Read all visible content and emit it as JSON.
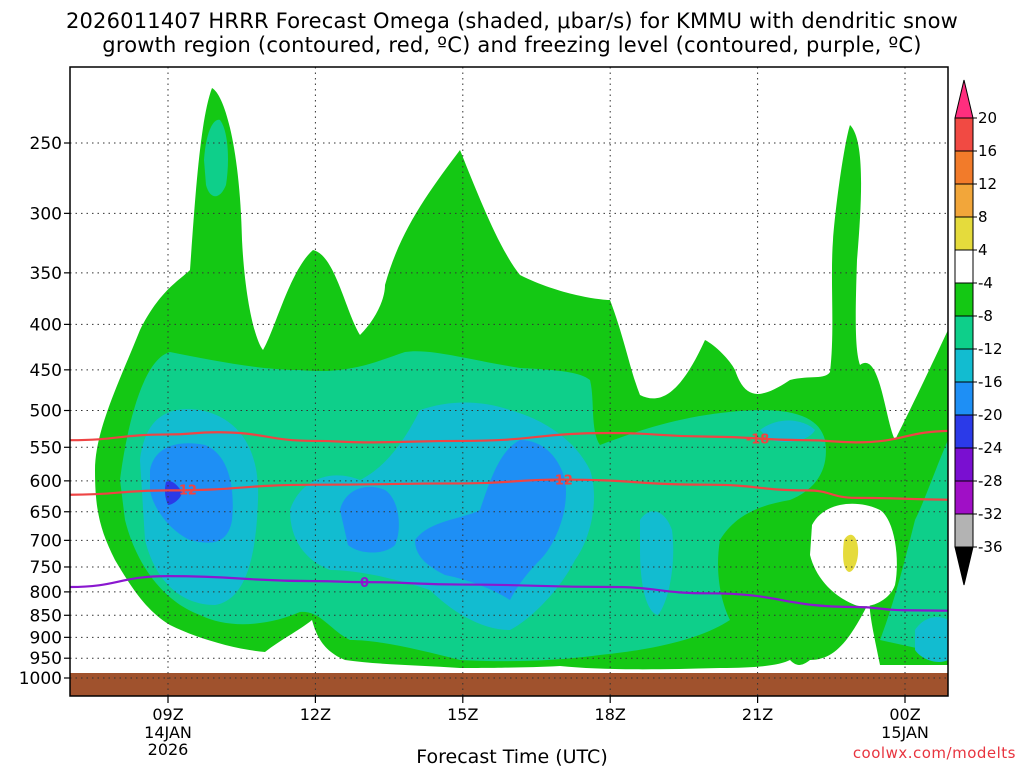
{
  "title_line1": "2026011407 HRRR Forecast Omega (shaded, μbar/s) for KMMU with dendritic snow",
  "title_line2": "growth region (contoured, red, ºC) and freezing level (contoured, purple, ºC)",
  "credit": "coolwx.com/modelts",
  "chart_data": {
    "type": "contour",
    "title": "2026011407 HRRR Forecast Omega (shaded, μbar/s) for KMMU with dendritic snow growth region (contoured, red, ºC) and freezing level (contoured, purple, ºC)",
    "xlabel": "Forecast Time (UTC)",
    "ylabel": "",
    "y_axis": {
      "scale": "pressure (log)",
      "ticks": [
        250,
        300,
        350,
        400,
        450,
        500,
        550,
        600,
        650,
        700,
        750,
        800,
        850,
        900,
        950,
        1000
      ],
      "reversed": true
    },
    "x_axis": {
      "range_hours": [
        7,
        25
      ],
      "ticks": [
        {
          "hour": 9,
          "label": "09Z",
          "sub1": "14JAN",
          "sub2": "2026"
        },
        {
          "hour": 12,
          "label": "12Z",
          "sub1": "",
          "sub2": ""
        },
        {
          "hour": 15,
          "label": "15Z",
          "sub1": "",
          "sub2": ""
        },
        {
          "hour": 18,
          "label": "18Z",
          "sub1": "",
          "sub2": ""
        },
        {
          "hour": 21,
          "label": "21Z",
          "sub1": "",
          "sub2": ""
        },
        {
          "hour": 24,
          "label": "00Z",
          "sub1": "15JAN",
          "sub2": ""
        }
      ]
    },
    "colorbar": {
      "labels": [
        "20",
        "16",
        "12",
        "8",
        "4",
        "-4",
        "-8",
        "-12",
        "-16",
        "-20",
        "-24",
        "-28",
        "-32",
        "-36"
      ],
      "colors": [
        "#ff2e7e",
        "#f14a43",
        "#f27b2a",
        "#f2a63a",
        "#e5db3c",
        "#ffffff",
        "#14c814",
        "#0ecf8a",
        "#12bcd0",
        "#1e8ff5",
        "#2b3ae8",
        "#7a0fd1",
        "#a00fc6",
        "#b3b3b3",
        "#000000"
      ]
    },
    "series": [
      {
        "name": "-18",
        "color": "#ee4444",
        "points": [
          [
            7,
            540
          ],
          [
            9,
            532
          ],
          [
            10,
            529
          ],
          [
            12,
            541
          ],
          [
            13,
            543
          ],
          [
            15,
            541
          ],
          [
            18,
            530
          ],
          [
            20,
            535
          ],
          [
            22,
            540
          ],
          [
            23,
            543
          ],
          [
            25,
            527
          ]
        ]
      },
      {
        "name": "-12",
        "color": "#ee4444",
        "points": [
          [
            7,
            622
          ],
          [
            9,
            615
          ],
          [
            12,
            606
          ],
          [
            15,
            604
          ],
          [
            17,
            598
          ],
          [
            20,
            606
          ],
          [
            22,
            615
          ],
          [
            23,
            627
          ],
          [
            25,
            630
          ]
        ]
      },
      {
        "name": "0",
        "color": "#8a17cf",
        "points": [
          [
            7,
            790
          ],
          [
            9,
            768
          ],
          [
            12,
            778
          ],
          [
            13,
            780
          ],
          [
            15,
            785
          ],
          [
            18,
            790
          ],
          [
            20,
            803
          ],
          [
            23,
            832
          ],
          [
            24,
            839
          ],
          [
            25,
            840
          ]
        ]
      }
    ],
    "shaded_regions": [
      {
        "level": "-8 to -4",
        "color": "#14c814"
      },
      {
        "level": "-12 to -8",
        "color": "#0ecf8a"
      },
      {
        "level": "-16 to -12",
        "color": "#12bcd0"
      },
      {
        "level": "-20 to -16",
        "color": "#1e8ff5"
      },
      {
        "level": "-24 to -20",
        "color": "#2b3ae8"
      },
      {
        "level": "4 to 8",
        "color": "#e5db3c"
      }
    ],
    "ground_color": "#a0522d",
    "grid": true
  }
}
